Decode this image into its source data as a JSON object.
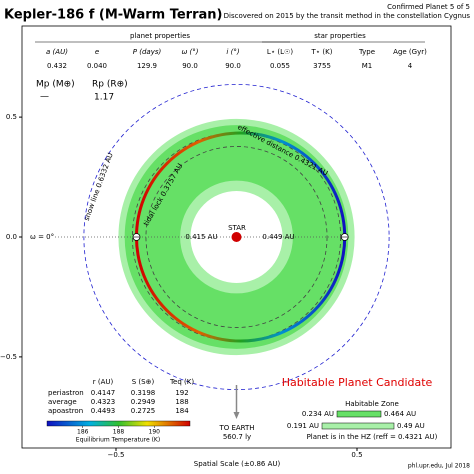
{
  "chart_data": {
    "type": "orbit",
    "title": "Kepler-186 f (M-Warm Terran)",
    "subtitle": [
      "Confirmed Planet 5 of 5",
      "Discovered on 2015 by the transit method in the constellation Cygnus"
    ],
    "planet_properties": {
      "title": "planet properties",
      "columns": [
        "a (AU)",
        "e",
        "P (days)",
        "ω (°)",
        "i (°)"
      ],
      "values": [
        "0.432",
        "0.040",
        "129.9",
        "90.0",
        "90.0"
      ]
    },
    "star_properties": {
      "title": "star properties",
      "columns": [
        "L⋆ (L☉)",
        "T⋆ (K)",
        "Type",
        "Age (Gyr)"
      ],
      "values": [
        "0.055",
        "3755",
        "M1",
        "4"
      ]
    },
    "mass": {
      "label": "Mp (M⊕)",
      "value": "—"
    },
    "radius": {
      "label": "Rp (R⊕)",
      "value": "1.17"
    },
    "xlim": [
      -0.89,
      0.89
    ],
    "ylim": [
      -0.88,
      0.88
    ],
    "xticks": [
      {
        "value": -0.5,
        "label": "−0.5"
      },
      {
        "value": 0.5,
        "label": "0.5"
      }
    ],
    "yticks": [
      {
        "value": 0.5,
        "label": "0.5"
      },
      {
        "value": 0,
        "label": "0.0"
      },
      {
        "value": -0.5,
        "label": "−0.5"
      }
    ],
    "xlabel": "Spatial Scale (±0.86 AU)",
    "periapsis_angle_label": "ω = 0°",
    "star_label": "STAR",
    "periastron_distance": {
      "value": 0.415,
      "label": "0.415 AU"
    },
    "apoastron_distance": {
      "value": 0.449,
      "label": "0.449 AU"
    },
    "effective_distance": {
      "value": 0.4321,
      "label": "effective distance 0.4321 AU"
    },
    "tidal_lock": {
      "value": 0.3757,
      "label": "tidal lock 0.3757 AU"
    },
    "snow_line": {
      "value": 0.6332,
      "label": "snow line 0.6332 AU"
    },
    "habitable_zone": {
      "title": "Habitable Zone",
      "conservative": [
        {
          "value": 0.234,
          "label": "0.234 AU"
        },
        {
          "value": 0.464,
          "label": "0.464 AU"
        }
      ],
      "optimistic": [
        {
          "value": 0.191,
          "label": "0.191 AU"
        },
        {
          "value": 0.49,
          "label": "0.49 AU"
        }
      ],
      "status": "Planet is in the HZ (reff = 0.4321 AU)"
    },
    "classification": "Habitable Planet Candidate",
    "orbit_table": {
      "columns": [
        "r (AU)",
        "S (S⊕)",
        "Teq (K)"
      ],
      "rows": [
        [
          "periastron",
          "0.4147",
          "0.3198",
          "192"
        ],
        [
          "average",
          "0.4323",
          "0.2949",
          "188"
        ],
        [
          "apoastron",
          "0.4493",
          "0.2725",
          "184"
        ]
      ]
    },
    "colorbar": {
      "label": "Equilibrium Temperature (K)",
      "clim": [
        184,
        192
      ],
      "ticks": [
        186,
        188,
        190
      ]
    },
    "earth": {
      "label": "TO EARTH",
      "distance": "560.7 ly"
    },
    "credit": "phl.upr.edu, Jul 2018"
  }
}
